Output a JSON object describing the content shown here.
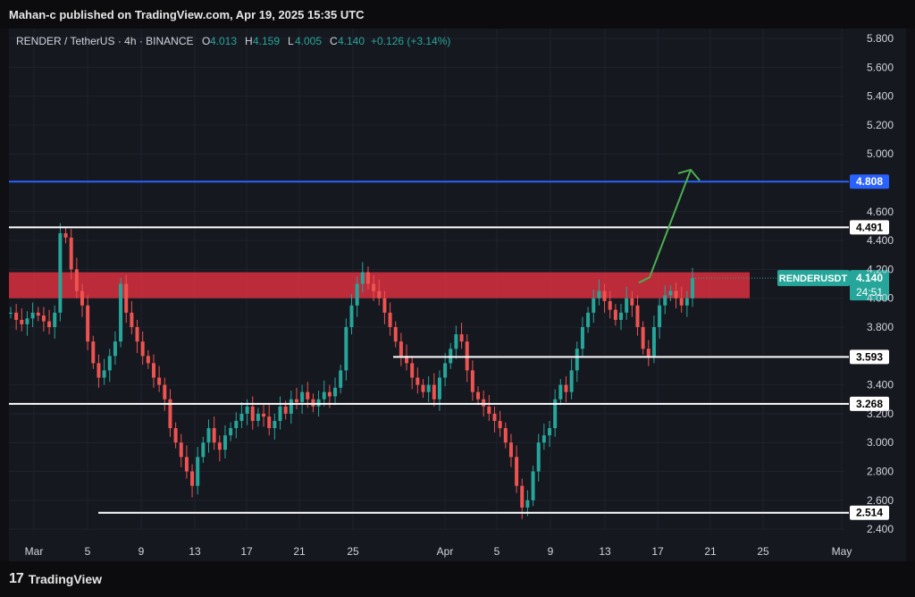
{
  "header": {
    "published": "Mahan-c published on TradingView.com, Apr 19, 2025 15:35 UTC"
  },
  "footer": {
    "logo_mark": "17",
    "brand": "TradingView"
  },
  "legend": {
    "symbol": "RENDER / TetherUS · 4h · BINANCE",
    "o_label": "O",
    "o_value": "4.013",
    "h_label": "H",
    "h_value": "4.159",
    "l_label": "L",
    "l_value": "4.005",
    "c_label": "C",
    "c_value": "4.140",
    "change": "+0.126 (+3.14%)"
  },
  "colors": {
    "up": "#26a69a",
    "down": "#ef5350",
    "blue_line": "#2962ff",
    "zone": "#e0303f",
    "text": "#d1d4dc",
    "arrow": "#4caf50"
  },
  "chart_data": {
    "type": "candlestick",
    "y_ticks": [
      "5.800",
      "5.600",
      "5.400",
      "5.200",
      "5.000",
      "4.600",
      "4.400",
      "4.200",
      "4.000",
      "3.800",
      "3.400",
      "3.200",
      "3.000",
      "2.800",
      "2.600",
      "2.400"
    ],
    "x_ticks": [
      "Mar",
      "5",
      "9",
      "13",
      "17",
      "21",
      "25",
      "Apr",
      "5",
      "9",
      "13",
      "17",
      "21",
      "25",
      "May"
    ],
    "levels": [
      {
        "value": 4.808,
        "label": "4.808",
        "color": "#2962ff"
      },
      {
        "value": 4.491,
        "label": "4.491",
        "color": "#ffffff"
      },
      {
        "value": 3.593,
        "label": "3.593",
        "color": "#ffffff"
      },
      {
        "value": 3.268,
        "label": "3.268",
        "color": "#ffffff"
      },
      {
        "value": 2.514,
        "label": "2.514",
        "color": "#ffffff"
      }
    ],
    "resistance_zone": {
      "from": 4.0,
      "to": 4.18
    },
    "current": {
      "symbol": "RENDERUSDT",
      "price": "4.140",
      "countdown": "24:51"
    },
    "projection": {
      "from": 4.12,
      "to": 4.89
    },
    "price_path": [
      3.9,
      3.85,
      3.82,
      3.86,
      3.9,
      3.88,
      3.84,
      3.8,
      3.9,
      4.45,
      4.42,
      4.2,
      4.05,
      3.95,
      3.7,
      3.55,
      3.45,
      3.5,
      3.6,
      3.7,
      4.1,
      3.9,
      3.8,
      3.7,
      3.6,
      3.55,
      3.45,
      3.4,
      3.3,
      3.1,
      3.0,
      2.9,
      2.8,
      2.7,
      2.9,
      3.0,
      3.1,
      3.0,
      2.95,
      3.05,
      3.1,
      3.15,
      3.2,
      3.25,
      3.15,
      3.2,
      3.18,
      3.1,
      3.15,
      3.25,
      3.2,
      3.3,
      3.28,
      3.35,
      3.3,
      3.25,
      3.3,
      3.35,
      3.32,
      3.38,
      3.5,
      3.8,
      3.95,
      4.1,
      4.18,
      4.1,
      4.05,
      4.0,
      3.9,
      3.8,
      3.7,
      3.6,
      3.55,
      3.45,
      3.4,
      3.35,
      3.4,
      3.3,
      3.45,
      3.55,
      3.65,
      3.75,
      3.7,
      3.5,
      3.35,
      3.3,
      3.25,
      3.2,
      3.15,
      3.1,
      3.0,
      2.9,
      2.7,
      2.55,
      2.6,
      2.8,
      3.0,
      3.05,
      3.1,
      3.3,
      3.4,
      3.35,
      3.5,
      3.65,
      3.8,
      3.9,
      4.0,
      4.05,
      3.98,
      3.92,
      3.85,
      3.9,
      4.0,
      3.95,
      3.8,
      3.65,
      3.6,
      3.8,
      3.95,
      4.02,
      4.05,
      4.0,
      3.95,
      4.0,
      4.14
    ]
  }
}
